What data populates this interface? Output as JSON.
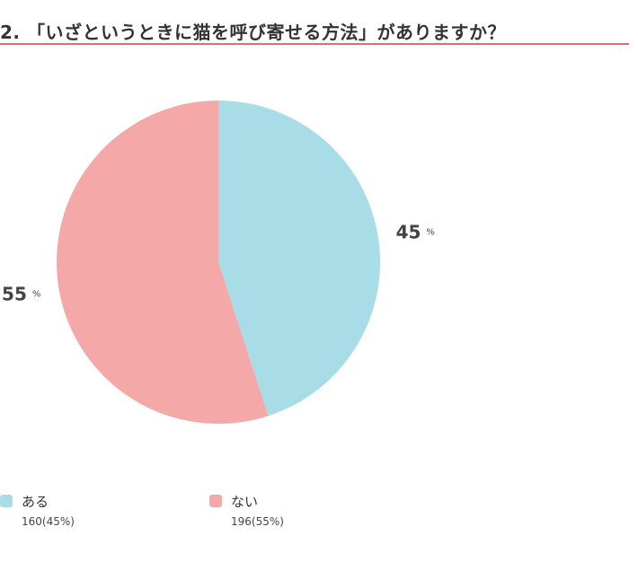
{
  "title": "2. 「いざというときに猫を呼び寄せる方法」がありますか？",
  "colors": {
    "accent": "#e96a6a",
    "series": [
      "#a8dce6",
      "#f5a8a8"
    ]
  },
  "chart_data": {
    "type": "pie",
    "title": "2. 「いざというときに猫を呼び寄せる方法」がありますか？",
    "slices": [
      {
        "label": "ある",
        "count": 160,
        "percent": 45,
        "legend_value": "160(45%)"
      },
      {
        "label": "ない",
        "count": 196,
        "percent": 55,
        "legend_value": "196(55%)"
      }
    ],
    "percent_unit": "%",
    "start": "top",
    "direction": "clockwise",
    "legend_position": "bottom-left"
  }
}
